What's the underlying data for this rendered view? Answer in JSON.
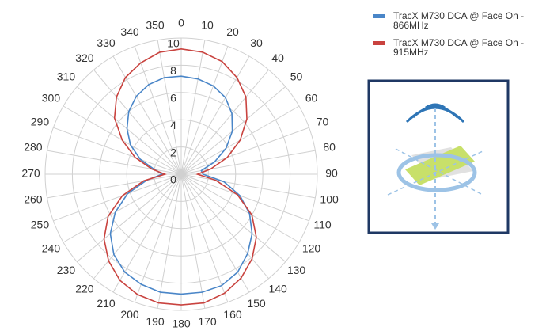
{
  "chart_data": {
    "type": "polar",
    "theta": [
      0,
      10,
      20,
      30,
      40,
      50,
      60,
      70,
      80,
      90,
      100,
      110,
      120,
      130,
      140,
      150,
      160,
      170,
      180,
      190,
      200,
      210,
      220,
      230,
      240,
      250,
      260,
      270,
      280,
      290,
      300,
      310,
      320,
      330,
      340,
      350
    ],
    "rlim": [
      0,
      10
    ],
    "rticks": [
      0,
      2,
      4,
      6,
      8,
      10
    ],
    "grid": true,
    "legend": "top-right",
    "series": [
      {
        "name": "TracX M730 DCA @ Face On - 866MHz",
        "color": "#4a86c8",
        "values": [
          7.2,
          7.1,
          6.9,
          6.5,
          5.8,
          4.9,
          3.8,
          2.6,
          1.5,
          1.6,
          3.2,
          4.6,
          5.8,
          6.8,
          7.6,
          8.3,
          8.7,
          8.8,
          8.8,
          8.8,
          8.6,
          8.3,
          7.7,
          6.8,
          5.6,
          4.2,
          2.6,
          1.4,
          2.0,
          3.2,
          4.3,
          5.2,
          6.0,
          6.6,
          7.0,
          7.2
        ]
      },
      {
        "name": "TracX M730 DCA @ Face On - 915MHz",
        "color": "#c9433f",
        "values": [
          9.2,
          9.1,
          8.8,
          8.2,
          7.4,
          6.3,
          5.0,
          3.6,
          2.2,
          1.2,
          2.6,
          4.4,
          6.0,
          7.2,
          8.1,
          8.8,
          9.3,
          9.6,
          9.6,
          9.6,
          9.4,
          9.0,
          8.3,
          7.4,
          6.2,
          4.6,
          2.8,
          1.2,
          2.2,
          3.6,
          5.0,
          6.4,
          7.4,
          8.2,
          8.7,
          9.1
        ]
      }
    ]
  }
}
